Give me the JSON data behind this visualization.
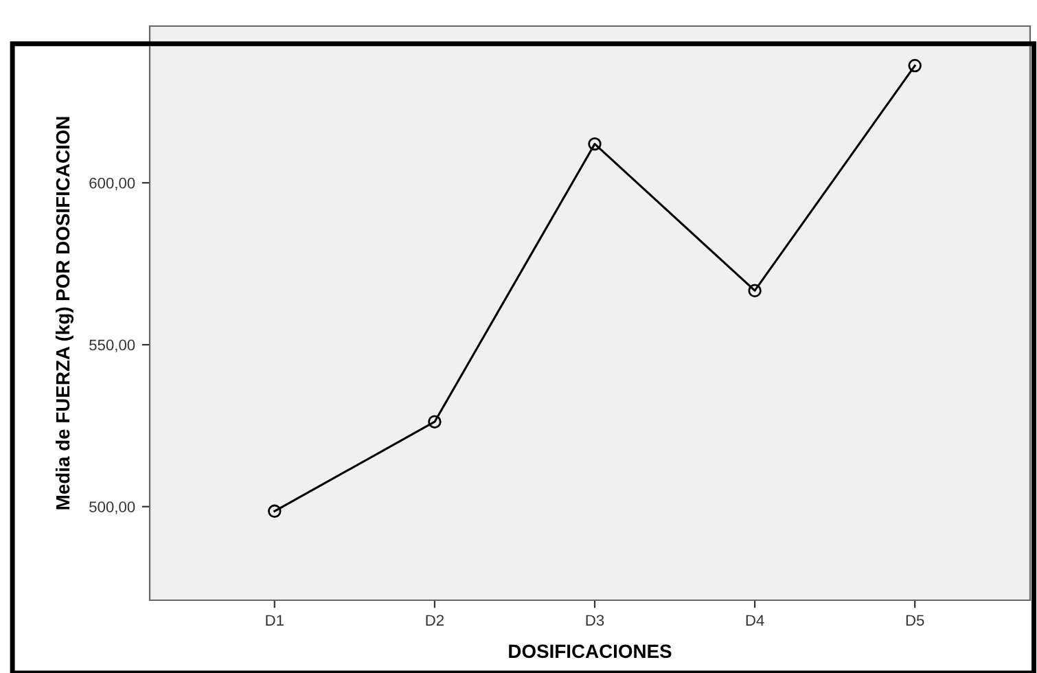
{
  "chart_data": {
    "type": "line",
    "xlabel": "DOSIFICACIONES",
    "ylabel": "Media de FUERZA (kg) POR DOSIFICACION",
    "categories": [
      "D1",
      "D2",
      "D3",
      "D4",
      "D5"
    ],
    "series": [
      {
        "color": "#000000",
        "values": [
          498.6,
          526.2,
          612.0,
          566.7,
          636.2
        ]
      }
    ],
    "ylim": [
      471.1,
      648.4
    ],
    "yticks": [
      {
        "value": 500,
        "label": "500,00"
      },
      {
        "value": 550,
        "label": "550,00"
      },
      {
        "value": 600,
        "label": "600,00"
      }
    ],
    "marker": "circle",
    "line_style": "solid",
    "grid": false,
    "legend": false
  }
}
